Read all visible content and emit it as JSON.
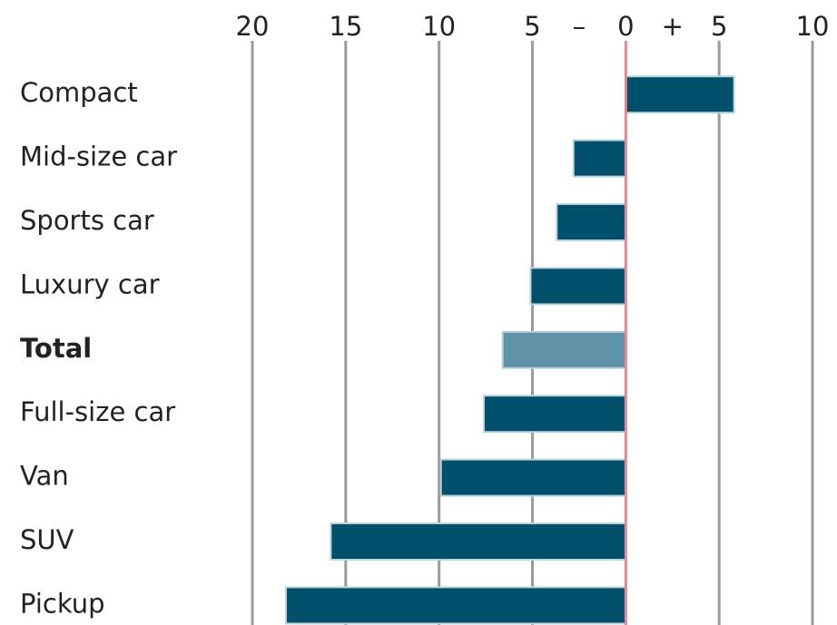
{
  "chart_data": {
    "type": "hbar",
    "categories": [
      "Compact",
      "Mid-size car",
      "Sports car",
      "Luxury car",
      "Total",
      "Full-size car",
      "Van",
      "SUV",
      "Pickup"
    ],
    "values": [
      5.8,
      -2.8,
      -3.7,
      -5.1,
      -6.6,
      -7.6,
      -9.9,
      -15.8,
      -18.2
    ],
    "colors": [
      "#004f6b",
      "#004f6b",
      "#004f6b",
      "#004f6b",
      "#5e93a8",
      "#004f6b",
      "#004f6b",
      "#004f6b",
      "#004f6b"
    ],
    "bold": [
      false,
      false,
      false,
      false,
      true,
      false,
      false,
      false,
      false
    ],
    "xlim": [
      -20,
      10
    ],
    "xticks": [
      {
        "value": -20,
        "label": "20"
      },
      {
        "value": -15,
        "label": "15"
      },
      {
        "value": -10,
        "label": "10"
      },
      {
        "value": -5,
        "label": "5"
      },
      0,
      5,
      10
    ],
    "sign_labels": [
      "–",
      "+"
    ],
    "grid": true,
    "zero_line_color": "#e9868b"
  }
}
